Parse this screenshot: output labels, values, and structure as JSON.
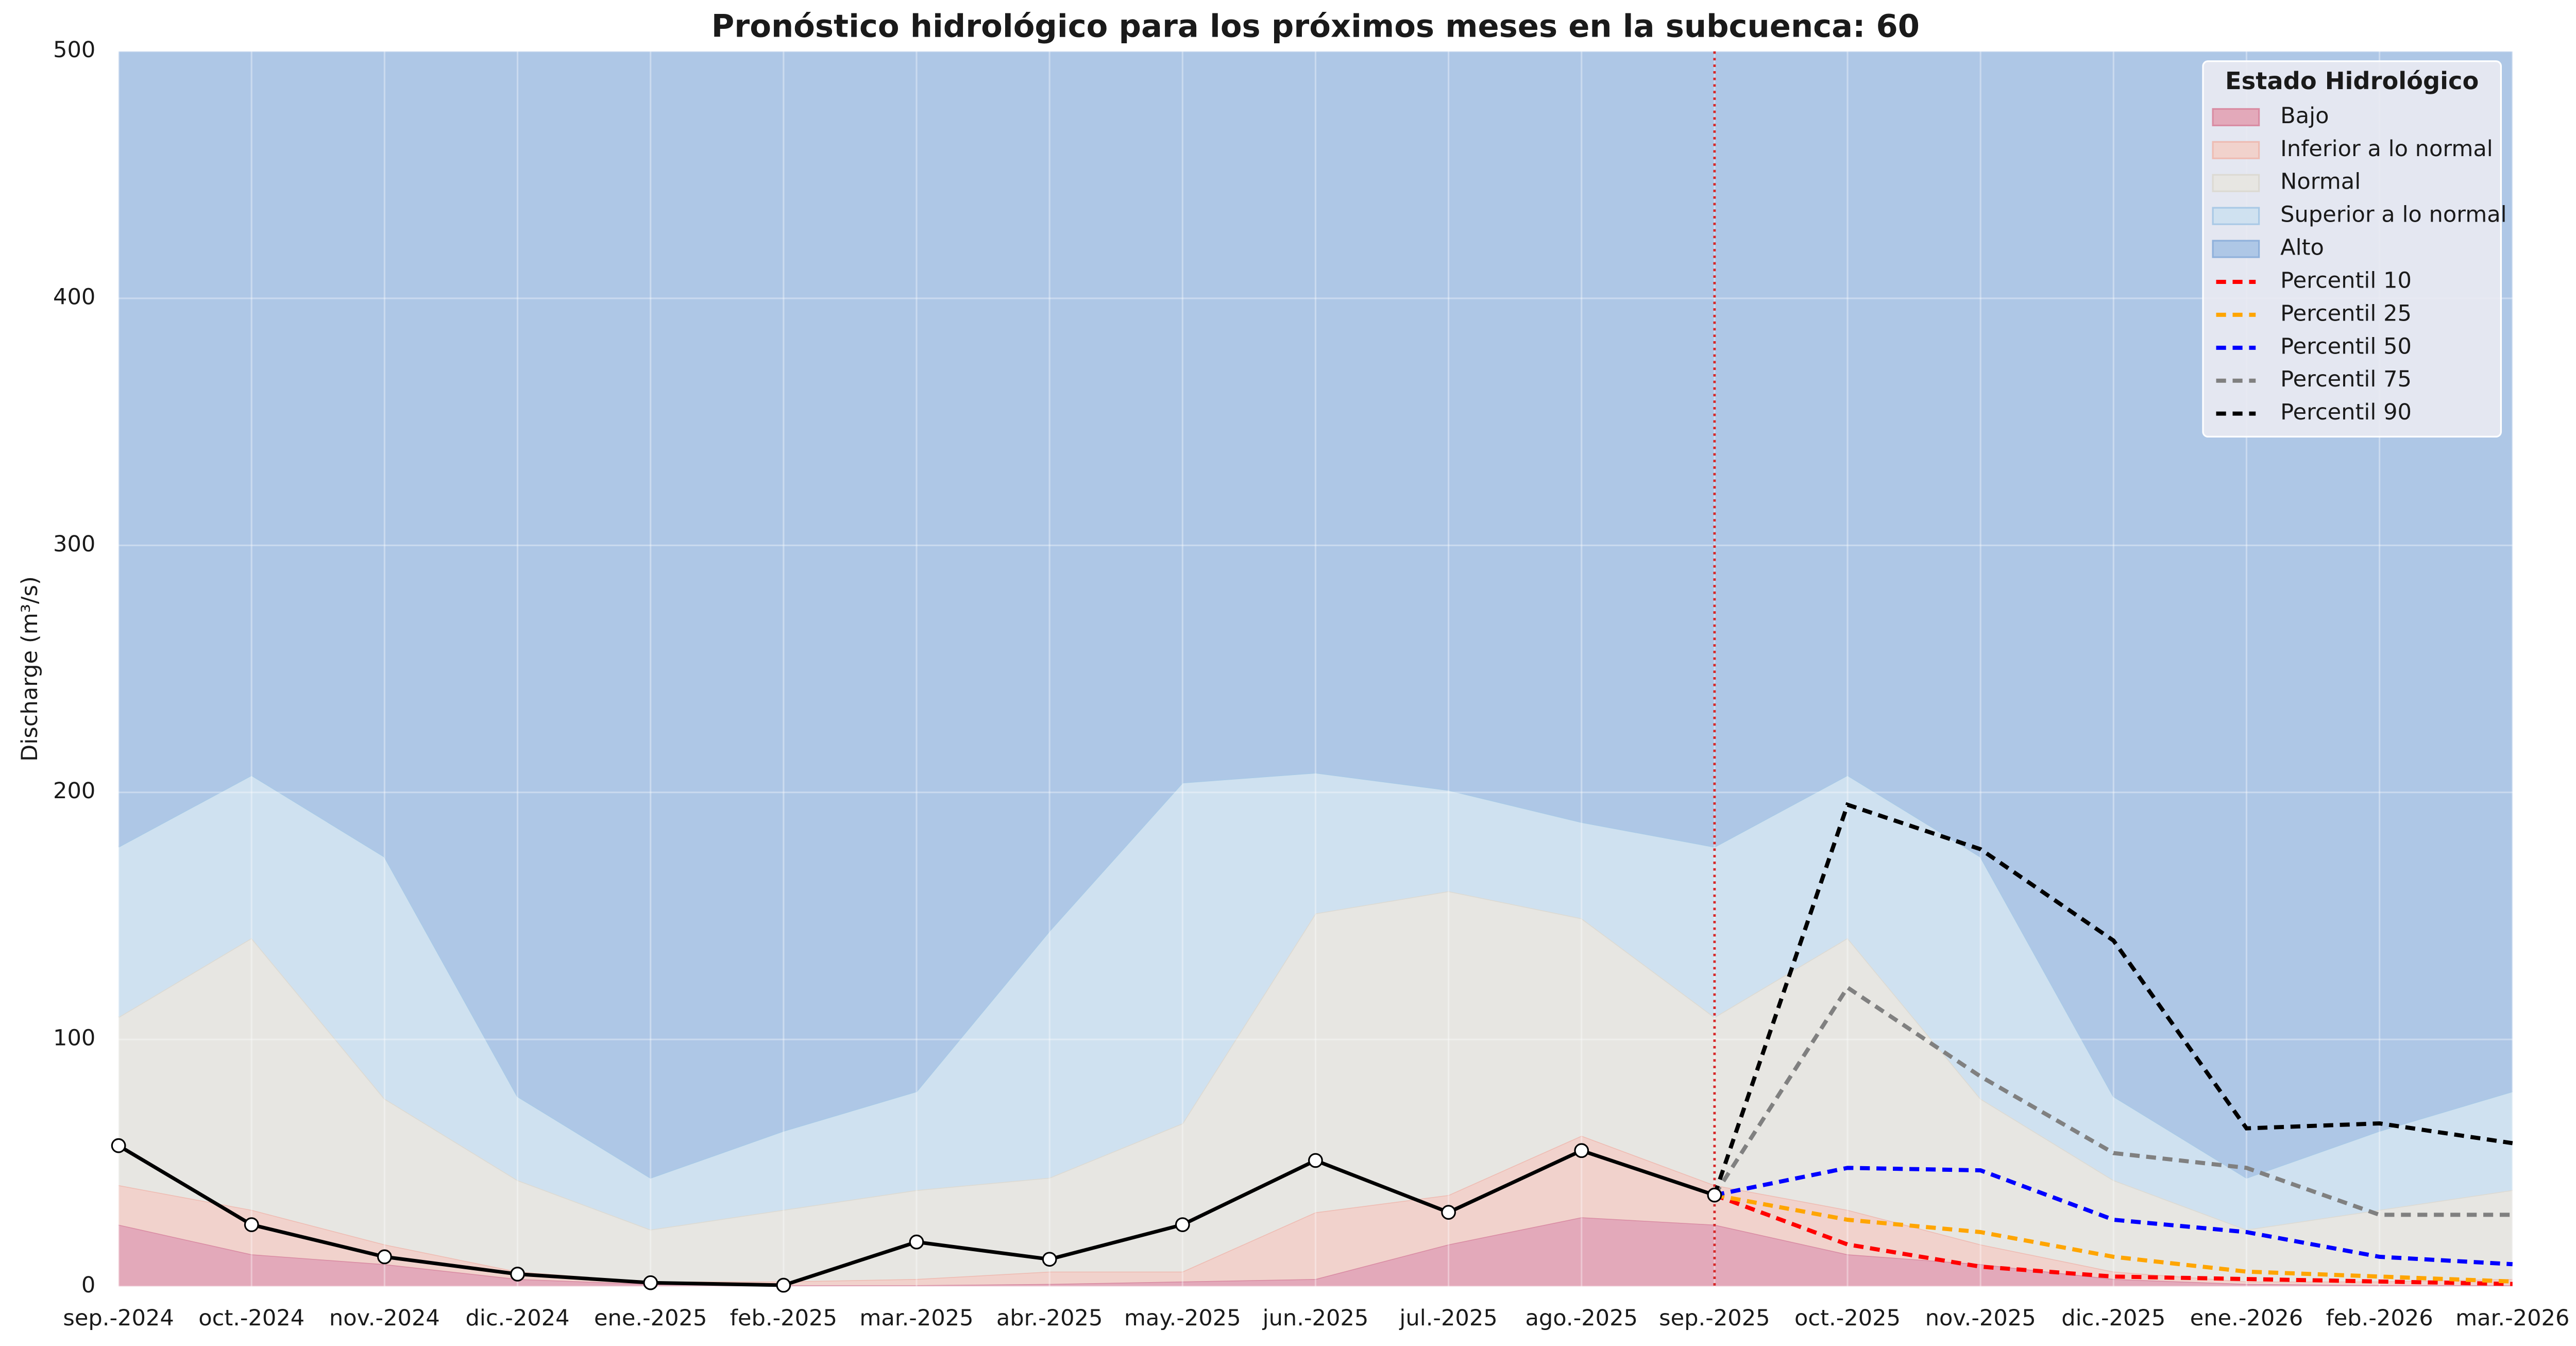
{
  "chart_data": {
    "type": "area",
    "title": "Pronóstico hidrológico para los próximos meses en la subcuenca: 60",
    "y_label": "Discharge (m³/s)",
    "categories": [
      "sep.-2024",
      "oct.-2024",
      "nov.-2024",
      "dic.-2024",
      "ene.-2025",
      "feb.-2025",
      "mar.-2025",
      "abr.-2025",
      "may.-2025",
      "jun.-2025",
      "jul.-2025",
      "ago.-2025",
      "sep.-2025",
      "oct.-2025",
      "nov.-2025",
      "dic.-2025",
      "ene.-2026",
      "feb.-2026",
      "mar.-2026"
    ],
    "ylim": [
      0,
      500
    ],
    "yticks": [
      0,
      100,
      200,
      300,
      400,
      500
    ],
    "grid": true,
    "legend": "upper right",
    "legend_title": "Estado Hidrológico",
    "vline": "sep.-2025",
    "vline_color": "#d62728",
    "bands": [
      {
        "name": "Bajo",
        "color": "#e3a9ba",
        "edge": "#d98ca3",
        "values": [
          25,
          13,
          9,
          3,
          1,
          0.5,
          0.5,
          1,
          2,
          3,
          17,
          28,
          25,
          13,
          9,
          3,
          1,
          0.5,
          0.5
        ]
      },
      {
        "name": "Inferior a lo normal",
        "color": "#f1d2cc",
        "edge": "#eebcb3",
        "values": [
          16,
          18,
          8,
          3,
          1,
          1.5,
          2.5,
          5,
          4,
          27,
          20,
          33,
          16,
          18,
          8,
          3,
          1,
          1.5,
          2.5
        ]
      },
      {
        "name": "Normal",
        "color": "#e7e6e2",
        "edge": "#dcdad3",
        "values": [
          68,
          110,
          59,
          37,
          21,
          29,
          36,
          38,
          60,
          121,
          123,
          88,
          68,
          110,
          59,
          37,
          21,
          29,
          36
        ]
      },
      {
        "name": "Superior a lo normal",
        "color": "#cfe1f0",
        "edge": "#a9c9e6",
        "values": [
          69,
          66,
          98,
          34,
          21,
          32,
          40,
          100,
          138,
          57,
          41,
          39,
          69,
          66,
          98,
          34,
          21,
          32,
          40
        ]
      },
      {
        "name": "Alto",
        "color": "#aec7e6",
        "edge": "#8fb1db",
        "values": [
          322,
          293,
          326,
          423,
          456,
          437,
          421,
          356,
          296,
          292,
          299,
          312,
          322,
          293,
          326,
          423,
          456,
          437,
          421
        ]
      }
    ],
    "observed": {
      "color": "#000000",
      "values": [
        57,
        25,
        12,
        5,
        1.5,
        0.5,
        18,
        11,
        25,
        51,
        30,
        55,
        37,
        null,
        null,
        null,
        null,
        null,
        null
      ]
    },
    "series": [
      {
        "name": "Percentil 10",
        "color": "#ff0000",
        "values": [
          null,
          null,
          null,
          null,
          null,
          null,
          null,
          null,
          null,
          null,
          null,
          null,
          37,
          17,
          8,
          4,
          3,
          2,
          1
        ]
      },
      {
        "name": "Percentil 25",
        "color": "#ffa500",
        "values": [
          null,
          null,
          null,
          null,
          null,
          null,
          null,
          null,
          null,
          null,
          null,
          null,
          37,
          27,
          22,
          12,
          6,
          4,
          2
        ]
      },
      {
        "name": "Percentil 50",
        "color": "#0000ff",
        "values": [
          null,
          null,
          null,
          null,
          null,
          null,
          null,
          null,
          null,
          null,
          null,
          null,
          37,
          48,
          47,
          27,
          22,
          12,
          9
        ]
      },
      {
        "name": "Percentil 75",
        "color": "#808080",
        "values": [
          null,
          null,
          null,
          null,
          null,
          null,
          null,
          null,
          null,
          null,
          null,
          null,
          37,
          121,
          85,
          54,
          48,
          29,
          29
        ]
      },
      {
        "name": "Percentil 90",
        "color": "#000000",
        "values": [
          null,
          null,
          null,
          null,
          null,
          null,
          null,
          null,
          null,
          null,
          null,
          null,
          37,
          195,
          177,
          140,
          64,
          66,
          58
        ]
      }
    ]
  }
}
